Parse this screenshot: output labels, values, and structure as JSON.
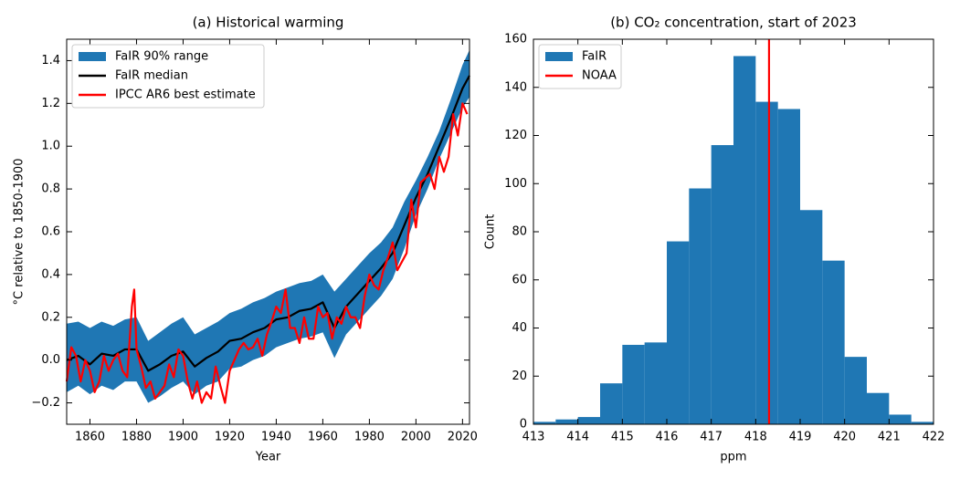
{
  "chart_data": [
    {
      "type": "line",
      "title": "(a) Historical warming",
      "xlabel": "Year",
      "ylabel": "°C relative to 1850-1900",
      "xlim": [
        1850,
        2023
      ],
      "xticks": [
        1860,
        1880,
        1900,
        1920,
        1940,
        1960,
        1980,
        2000,
        2020
      ],
      "ylim": [
        -0.3,
        1.5
      ],
      "yticks": [
        {
          "value": -0.2,
          "label": "−0.2"
        },
        {
          "value": 0,
          "label": "0.0"
        },
        0.2,
        0.4,
        0.6,
        0.8,
        {
          "value": 1,
          "label": "1.0"
        },
        1.2,
        1.4
      ],
      "legend": "upper left",
      "series": [
        {
          "name": "FaIR 90% range",
          "kind": "band",
          "color": "#1f77b4",
          "x": [
            1850,
            1855,
            1860,
            1865,
            1870,
            1875,
            1880,
            1885,
            1890,
            1895,
            1900,
            1905,
            1910,
            1915,
            1920,
            1925,
            1930,
            1935,
            1940,
            1945,
            1950,
            1955,
            1960,
            1965,
            1970,
            1975,
            1980,
            1985,
            1990,
            1995,
            2000,
            2005,
            2010,
            2015,
            2020,
            2023
          ],
          "lower": [
            -0.15,
            -0.12,
            -0.16,
            -0.12,
            -0.14,
            -0.1,
            -0.1,
            -0.2,
            -0.17,
            -0.13,
            -0.1,
            -0.16,
            -0.12,
            -0.1,
            -0.04,
            -0.03,
            0.0,
            0.02,
            0.06,
            0.08,
            0.1,
            0.11,
            0.13,
            0.01,
            0.12,
            0.18,
            0.24,
            0.3,
            0.38,
            0.52,
            0.68,
            0.8,
            0.94,
            1.06,
            1.18,
            1.23
          ],
          "upper": [
            0.17,
            0.18,
            0.15,
            0.18,
            0.16,
            0.19,
            0.2,
            0.09,
            0.13,
            0.17,
            0.2,
            0.12,
            0.15,
            0.18,
            0.22,
            0.24,
            0.27,
            0.29,
            0.32,
            0.34,
            0.36,
            0.37,
            0.4,
            0.32,
            0.38,
            0.44,
            0.5,
            0.55,
            0.62,
            0.74,
            0.84,
            0.95,
            1.07,
            1.22,
            1.38,
            1.45
          ]
        },
        {
          "name": "FaIR median",
          "kind": "line",
          "color": "#000000",
          "x": [
            1850,
            1855,
            1860,
            1865,
            1870,
            1875,
            1880,
            1885,
            1890,
            1895,
            1900,
            1905,
            1910,
            1915,
            1920,
            1925,
            1930,
            1935,
            1940,
            1945,
            1950,
            1955,
            1960,
            1965,
            1970,
            1975,
            1980,
            1985,
            1990,
            1995,
            2000,
            2005,
            2010,
            2015,
            2020,
            2023
          ],
          "values": [
            0.0,
            0.02,
            -0.02,
            0.03,
            0.02,
            0.05,
            0.05,
            -0.05,
            -0.02,
            0.02,
            0.04,
            -0.03,
            0.01,
            0.04,
            0.09,
            0.1,
            0.13,
            0.15,
            0.19,
            0.2,
            0.23,
            0.24,
            0.27,
            0.15,
            0.25,
            0.31,
            0.37,
            0.43,
            0.5,
            0.63,
            0.76,
            0.87,
            1.0,
            1.13,
            1.27,
            1.33
          ]
        },
        {
          "name": "IPCC AR6 best estimate",
          "kind": "line",
          "color": "#ff0000",
          "x": [
            1850,
            1852,
            1854,
            1856,
            1858,
            1860,
            1862,
            1864,
            1866,
            1868,
            1870,
            1872,
            1874,
            1876,
            1878,
            1879,
            1880,
            1882,
            1884,
            1886,
            1888,
            1890,
            1892,
            1894,
            1896,
            1898,
            1900,
            1902,
            1904,
            1906,
            1908,
            1910,
            1912,
            1914,
            1916,
            1918,
            1920,
            1922,
            1924,
            1926,
            1928,
            1930,
            1932,
            1934,
            1936,
            1938,
            1940,
            1942,
            1944,
            1946,
            1948,
            1950,
            1952,
            1954,
            1956,
            1958,
            1960,
            1962,
            1964,
            1966,
            1968,
            1970,
            1972,
            1974,
            1976,
            1978,
            1980,
            1982,
            1984,
            1986,
            1988,
            1990,
            1992,
            1994,
            1996,
            1998,
            2000,
            2002,
            2004,
            2006,
            2008,
            2010,
            2012,
            2014,
            2016,
            2018,
            2020,
            2022
          ],
          "values": [
            -0.1,
            0.06,
            0.02,
            -0.1,
            0.0,
            -0.05,
            -0.15,
            -0.1,
            0.02,
            -0.05,
            0.0,
            0.03,
            -0.05,
            -0.08,
            0.25,
            0.33,
            0.05,
            -0.03,
            -0.13,
            -0.1,
            -0.18,
            -0.15,
            -0.12,
            -0.02,
            -0.08,
            0.05,
            0.02,
            -0.1,
            -0.18,
            -0.1,
            -0.2,
            -0.15,
            -0.18,
            -0.03,
            -0.12,
            -0.2,
            -0.05,
            0.0,
            0.05,
            0.08,
            0.05,
            0.06,
            0.1,
            0.02,
            0.12,
            0.18,
            0.25,
            0.22,
            0.33,
            0.15,
            0.15,
            0.08,
            0.2,
            0.1,
            0.1,
            0.25,
            0.2,
            0.22,
            0.1,
            0.2,
            0.17,
            0.25,
            0.2,
            0.2,
            0.15,
            0.3,
            0.4,
            0.35,
            0.33,
            0.42,
            0.48,
            0.55,
            0.42,
            0.46,
            0.5,
            0.75,
            0.62,
            0.83,
            0.85,
            0.87,
            0.8,
            0.95,
            0.88,
            0.95,
            1.15,
            1.05,
            1.2,
            1.15
          ]
        }
      ]
    },
    {
      "type": "histogram",
      "title": "(b) CO₂ concentration, start of 2023",
      "xlabel": "ppm",
      "ylabel": "Count",
      "xlim": [
        413,
        422
      ],
      "xticks": [
        413,
        414,
        415,
        416,
        417,
        418,
        419,
        420,
        421,
        422
      ],
      "ylim": [
        0,
        160
      ],
      "yticks": [
        0,
        20,
        40,
        60,
        80,
        100,
        120,
        140,
        160
      ],
      "legend": "upper left",
      "bins": [
        413,
        413.5,
        414,
        414.5,
        415,
        415.5,
        416,
        416.5,
        417,
        417.5,
        418,
        418.5,
        419,
        419.5,
        420,
        420.5,
        421,
        421.5,
        422
      ],
      "series": [
        {
          "name": "FaIR",
          "color": "#1f77b4",
          "values": [
            1,
            2,
            3,
            17,
            33,
            34,
            76,
            98,
            116,
            153,
            134,
            131,
            89,
            68,
            28,
            13,
            4,
            1
          ]
        }
      ],
      "vline": {
        "name": "NOAA",
        "color": "#ff0000",
        "x": 418.3
      }
    }
  ]
}
